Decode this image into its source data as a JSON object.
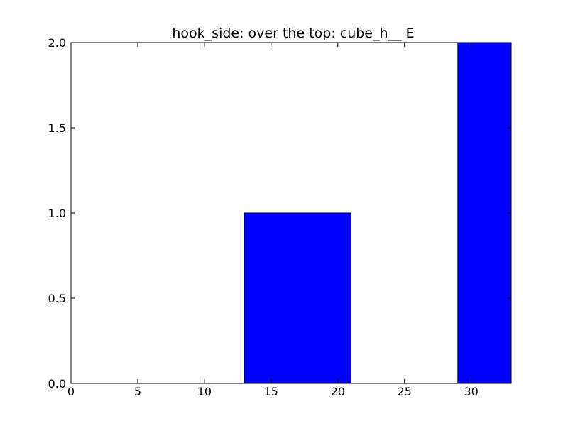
{
  "chart_data": {
    "type": "bar",
    "title": "hook_side: over the top: cube_h__ E",
    "xlabel": "",
    "ylabel": "",
    "xlim": [
      0,
      33
    ],
    "ylim": [
      0,
      2
    ],
    "xticks": [
      "0",
      "5",
      "10",
      "15",
      "20",
      "25",
      "30"
    ],
    "yticks": [
      "0.0",
      "0.5",
      "1.0",
      "1.5",
      "2.0"
    ],
    "bars": [
      {
        "x_start": 0,
        "x_end": 5,
        "value": 0
      },
      {
        "x_start": 13,
        "x_end": 21,
        "value": 1
      },
      {
        "x_start": 29,
        "x_end": 33,
        "value": 2
      }
    ],
    "grid": false,
    "colors": {
      "bar_fill": "#0000ff",
      "bar_edge": "#000000",
      "axes": "#000000",
      "background": "#ffffff"
    }
  }
}
